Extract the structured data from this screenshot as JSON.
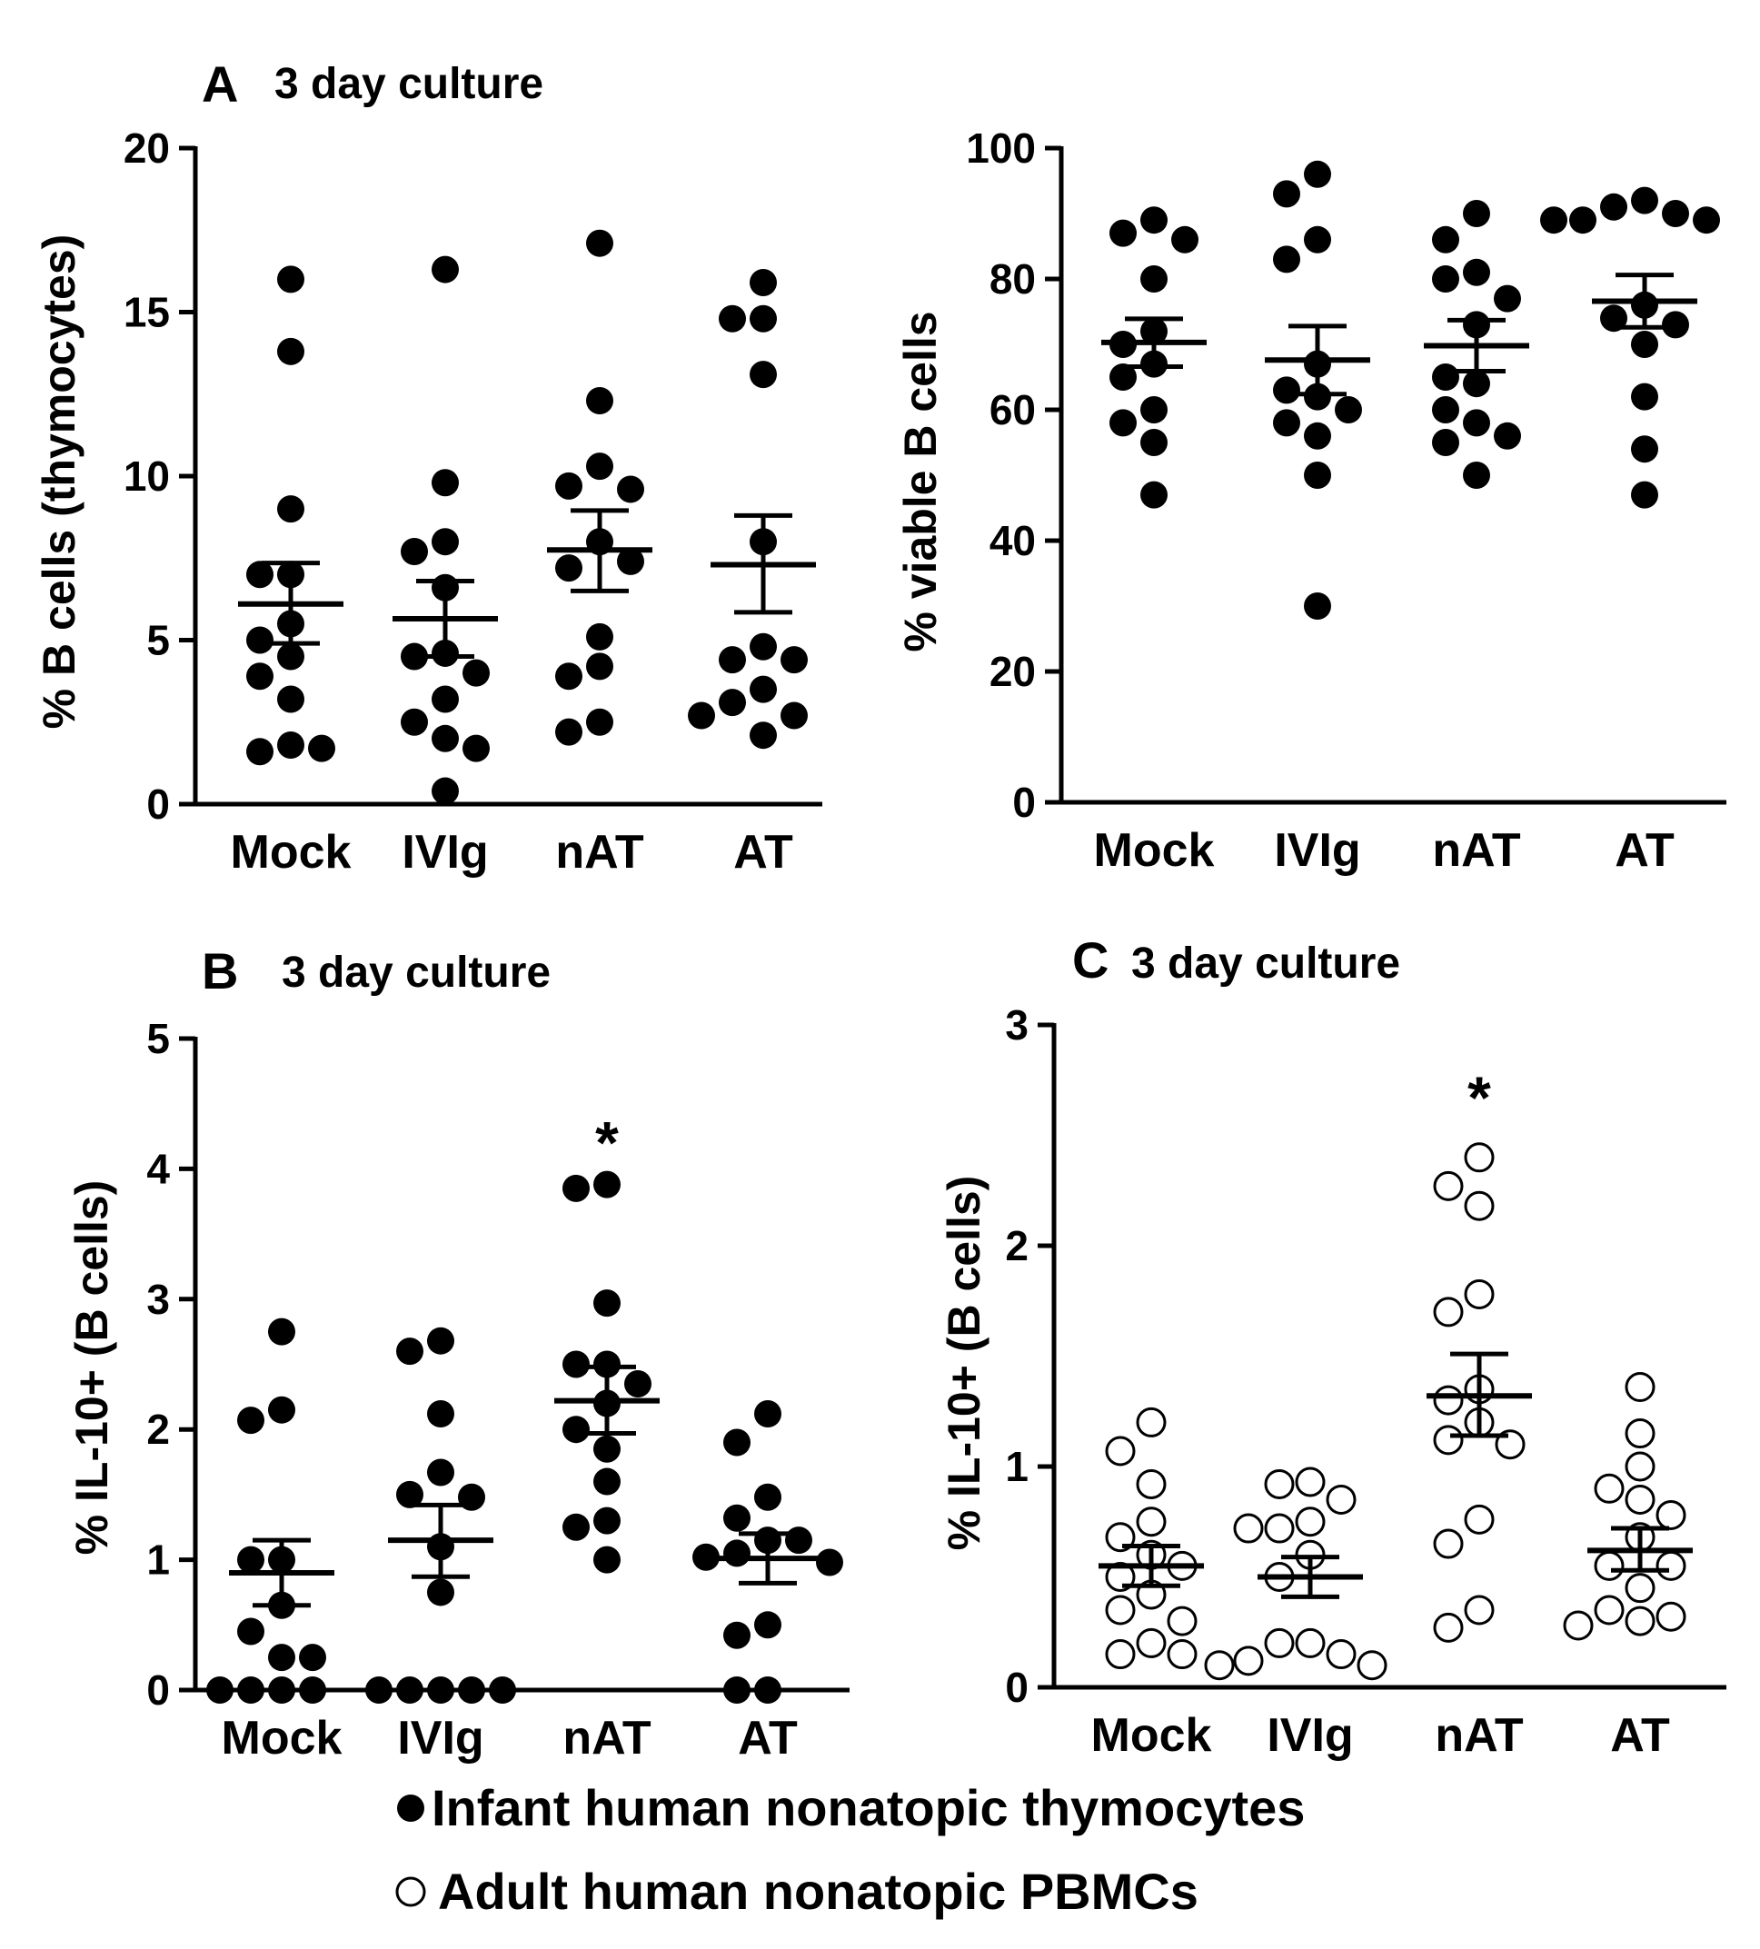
{
  "chart_data": [
    {
      "id": "A-left",
      "type": "scatter",
      "panel_letter": "A",
      "title": "3 day culture",
      "xlabel": "",
      "ylabel": "% B cells (thymocytes)",
      "ylim": [
        0,
        20
      ],
      "yticks": [
        0,
        5,
        10,
        15,
        20
      ],
      "categories": [
        "Mock",
        "IVIg",
        "nAT",
        "AT"
      ],
      "marker": "filled",
      "series": [
        {
          "category": "Mock",
          "points": [
            16.0,
            13.8,
            9.0,
            7.0,
            7.0,
            5.5,
            5.0,
            4.5,
            3.9,
            3.2,
            1.8,
            1.6,
            1.7
          ],
          "mean": 6.1,
          "sem_low": 4.9,
          "sem_high": 7.35
        },
        {
          "category": "IVIg",
          "points": [
            16.3,
            9.8,
            8.0,
            7.7,
            6.6,
            4.6,
            4.5,
            4.0,
            3.2,
            2.5,
            2.0,
            1.7,
            0.4
          ],
          "mean": 5.65,
          "sem_low": 4.5,
          "sem_high": 6.8
        },
        {
          "category": "nAT",
          "points": [
            17.1,
            12.3,
            10.3,
            9.7,
            9.6,
            8.0,
            7.2,
            7.4,
            5.1,
            4.2,
            3.9,
            2.5,
            2.2
          ],
          "mean": 7.75,
          "sem_low": 6.5,
          "sem_high": 8.95
        },
        {
          "category": "AT",
          "points": [
            15.9,
            14.8,
            14.8,
            13.1,
            8.0,
            4.8,
            4.4,
            4.4,
            3.5,
            3.1,
            2.7,
            2.7,
            2.1
          ],
          "mean": 7.3,
          "sem_low": 5.85,
          "sem_high": 8.8
        }
      ],
      "significance": []
    },
    {
      "id": "A-right",
      "type": "scatter",
      "panel_letter": "",
      "title": "",
      "xlabel": "",
      "ylabel": "% viable B cells",
      "ylim": [
        0,
        100
      ],
      "yticks": [
        0,
        20,
        40,
        60,
        80,
        100
      ],
      "categories": [
        "Mock",
        "IVIg",
        "nAT",
        "AT"
      ],
      "marker": "filled",
      "series": [
        {
          "category": "Mock",
          "points": [
            89,
            87,
            86,
            80,
            72,
            70,
            67,
            65,
            60,
            58,
            55,
            47
          ],
          "mean": 70.3,
          "sem_low": 66.6,
          "sem_high": 73.9
        },
        {
          "category": "IVIg",
          "points": [
            96,
            93,
            86,
            83,
            67,
            63,
            62,
            60,
            56,
            58,
            50,
            30
          ],
          "mean": 67.6,
          "sem_low": 62.4,
          "sem_high": 72.8
        },
        {
          "category": "nAT",
          "points": [
            90,
            86,
            81,
            80,
            77,
            73,
            64,
            65,
            60,
            58,
            56,
            55,
            50
          ],
          "mean": 69.8,
          "sem_low": 65.9,
          "sem_high": 73.7
        },
        {
          "category": "AT",
          "points": [
            92,
            91,
            90,
            89,
            89,
            89,
            76,
            74,
            70,
            73,
            62,
            54,
            47
          ],
          "mean": 76.6,
          "sem_low": 72.6,
          "sem_high": 80.6
        }
      ],
      "significance": []
    },
    {
      "id": "B",
      "type": "scatter",
      "panel_letter": "B",
      "title": "3 day culture",
      "xlabel": "",
      "ylabel": "% IL-10+ (B cells)",
      "ylim": [
        0,
        5
      ],
      "yticks": [
        0,
        1,
        2,
        3,
        4,
        5
      ],
      "categories": [
        "Mock",
        "IVIg",
        "nAT",
        "AT"
      ],
      "marker": "filled",
      "series": [
        {
          "category": "Mock",
          "points": [
            2.75,
            2.15,
            2.07,
            1.0,
            1.0,
            0.65,
            0.45,
            0.25,
            0.25,
            0.0,
            0.0,
            0.0,
            0.0
          ],
          "mean": 0.9,
          "sem_low": 0.65,
          "sem_high": 1.15
        },
        {
          "category": "IVIg",
          "points": [
            2.68,
            2.6,
            2.12,
            1.67,
            1.5,
            1.48,
            1.1,
            0.75,
            0.0,
            0.0,
            0.0,
            0.0,
            0.0
          ],
          "mean": 1.15,
          "sem_low": 0.87,
          "sem_high": 1.42
        },
        {
          "category": "nAT",
          "points": [
            3.88,
            3.85,
            2.97,
            2.5,
            2.5,
            2.35,
            2.2,
            2.0,
            1.85,
            1.6,
            1.3,
            1.25,
            1.0
          ],
          "mean": 2.22,
          "sem_low": 1.97,
          "sem_high": 2.48
        },
        {
          "category": "AT",
          "points": [
            2.12,
            1.9,
            1.48,
            1.32,
            1.15,
            1.15,
            1.05,
            1.02,
            0.98,
            0.5,
            0.42,
            0.0,
            0.0
          ],
          "mean": 1.01,
          "sem_low": 0.82,
          "sem_high": 1.2
        }
      ],
      "significance": [
        {
          "category": "nAT",
          "label": "*",
          "y": 4.25
        }
      ]
    },
    {
      "id": "C",
      "type": "scatter",
      "panel_letter": "C",
      "title": "3 day culture",
      "xlabel": "",
      "ylabel": "% IL-10+ (B cells)",
      "ylim": [
        0,
        3
      ],
      "yticks": [
        0,
        1,
        2,
        3
      ],
      "categories": [
        "Mock",
        "IVIg",
        "nAT",
        "AT"
      ],
      "marker": "open",
      "series": [
        {
          "category": "Mock",
          "points": [
            1.2,
            1.07,
            0.92,
            0.75,
            0.68,
            0.6,
            0.55,
            0.5,
            0.42,
            0.35,
            0.3,
            0.2,
            0.15,
            0.15
          ],
          "mean": 0.55,
          "sem_low": 0.46,
          "sem_high": 0.64
        },
        {
          "category": "IVIg",
          "points": [
            0.93,
            0.92,
            0.85,
            0.75,
            0.72,
            0.72,
            0.6,
            0.5,
            0.2,
            0.2,
            0.15,
            0.12,
            0.1,
            0.1
          ],
          "mean": 0.5,
          "sem_low": 0.41,
          "sem_high": 0.59
        },
        {
          "category": "nAT",
          "points": [
            2.4,
            2.27,
            2.18,
            1.78,
            1.7,
            1.35,
            1.3,
            1.2,
            1.12,
            1.1,
            0.76,
            0.65,
            0.35,
            0.27
          ],
          "mean": 1.32,
          "sem_low": 1.14,
          "sem_high": 1.51
        },
        {
          "category": "AT",
          "points": [
            1.36,
            1.15,
            1.0,
            0.9,
            0.85,
            0.78,
            0.68,
            0.55,
            0.55,
            0.45,
            0.35,
            0.32,
            0.3,
            0.28
          ],
          "mean": 0.62,
          "sem_low": 0.53,
          "sem_high": 0.72
        }
      ],
      "significance": [
        {
          "category": "nAT",
          "label": "*",
          "y": 2.7
        }
      ]
    }
  ],
  "legend": [
    {
      "marker": "filled",
      "label": "Infant human nonatopic thymocytes"
    },
    {
      "marker": "open",
      "label": "Adult human nonatopic PBMCs"
    }
  ]
}
